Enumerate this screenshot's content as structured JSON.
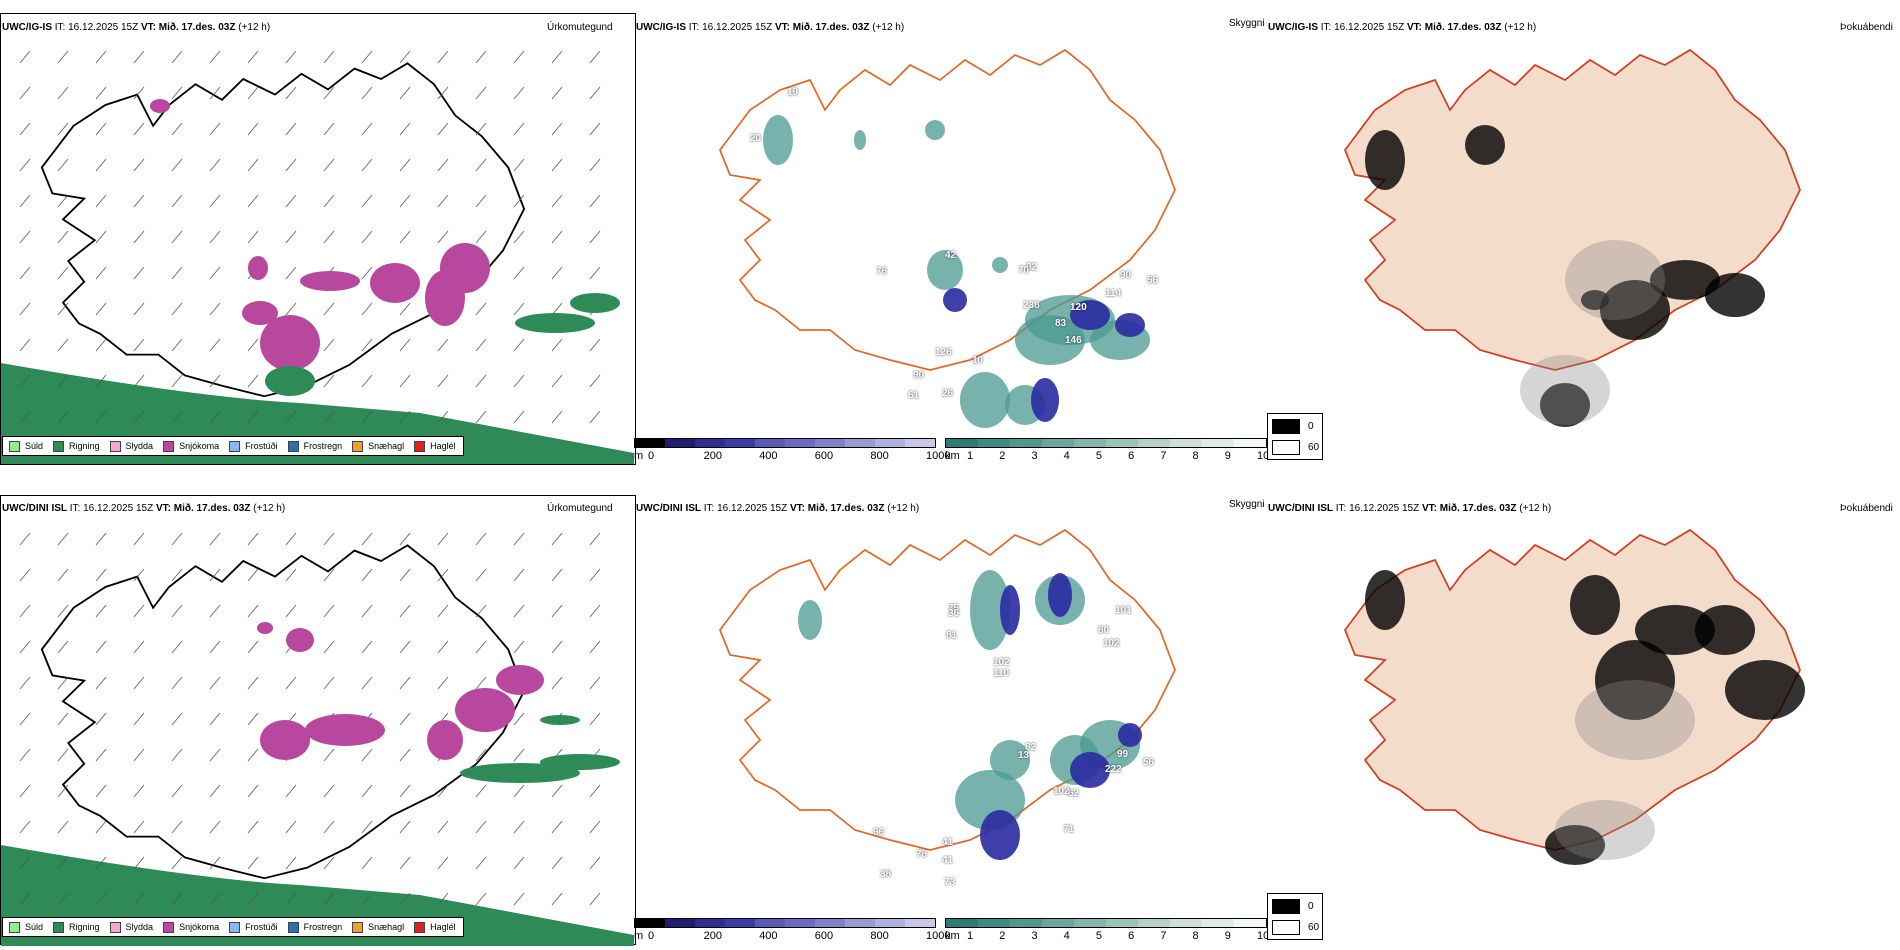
{
  "rows": [
    {
      "model": "UWC/IG-IS",
      "it_label": "IT:",
      "it_value": "16.12.2025 15Z",
      "vt_label": "VT:",
      "vt_value": "Mið. 17.des. 03Z",
      "lead": "(+12 h)",
      "ceiling_values": [
        "19",
        "20",
        "76",
        "42",
        "82",
        "70",
        "238",
        "120",
        "114",
        "90",
        "56",
        "146",
        "83",
        "126",
        "90",
        "61",
        "26",
        "10"
      ]
    },
    {
      "model": "UWC/DINI ISL",
      "it_label": "IT:",
      "it_value": "16.12.2025 15Z",
      "vt_label": "VT:",
      "vt_value": "Mið. 17.des. 03Z",
      "lead": "(+12 h)",
      "ceiling_values": [
        "75",
        "81",
        "36",
        "102",
        "110",
        "101",
        "80",
        "102",
        "13",
        "82",
        "99",
        "56",
        "222",
        "62",
        "102",
        "71",
        "96",
        "41",
        "78",
        "41",
        "38",
        "73"
      ]
    }
  ],
  "panel_titles": {
    "precip": "Úrkomutegund",
    "visibility": "Skyggni",
    "fog": "Þokuábendi"
  },
  "precip_legend": [
    {
      "label": "Súld",
      "color": "#90ee90"
    },
    {
      "label": "Rigning",
      "color": "#2e8b57"
    },
    {
      "label": "Slydda",
      "color": "#f4a6d2"
    },
    {
      "label": "Snjókoma",
      "color": "#b8489e"
    },
    {
      "label": "Frostúði",
      "color": "#87b8f0"
    },
    {
      "label": "Frostregn",
      "color": "#2d6fb5"
    },
    {
      "label": "Snæhagl",
      "color": "#f0a030"
    },
    {
      "label": "Haglél",
      "color": "#e02020"
    }
  ],
  "ceiling_bar": {
    "unit": "m",
    "ticks": [
      "0",
      "200",
      "400",
      "600",
      "800",
      "1000"
    ],
    "colors": [
      "#000000",
      "#1f1f70",
      "#2e2e90",
      "#3a3aa8",
      "#5a5ab8",
      "#6a6ac0",
      "#8080c8",
      "#9a9ad2",
      "#b0b0dc",
      "#c8c8e6"
    ]
  },
  "visibility_bar": {
    "unit": "km",
    "ticks": [
      "1",
      "2",
      "3",
      "4",
      "5",
      "6",
      "7",
      "8",
      "9",
      "10"
    ],
    "colors": [
      "#2e7b76",
      "#3e8a84",
      "#54978f",
      "#6ba59d",
      "#84b4aa",
      "#9cc3ba",
      "#b4d2c9",
      "#cbe0d8",
      "#dfece6",
      "#f2f8f5"
    ]
  },
  "fog_key": [
    {
      "label": "0",
      "color": "#000000"
    },
    {
      "label": "60",
      "color": "#ffffff"
    }
  ],
  "colors": {
    "land_fog": "#f4dccb",
    "roads": "#e06a2a",
    "coast": "#000000",
    "rain": "#2e8b57",
    "snow": "#b8489e",
    "ceiling_dark": "#2a2aa0",
    "vis_teal": "#4a9a90"
  }
}
